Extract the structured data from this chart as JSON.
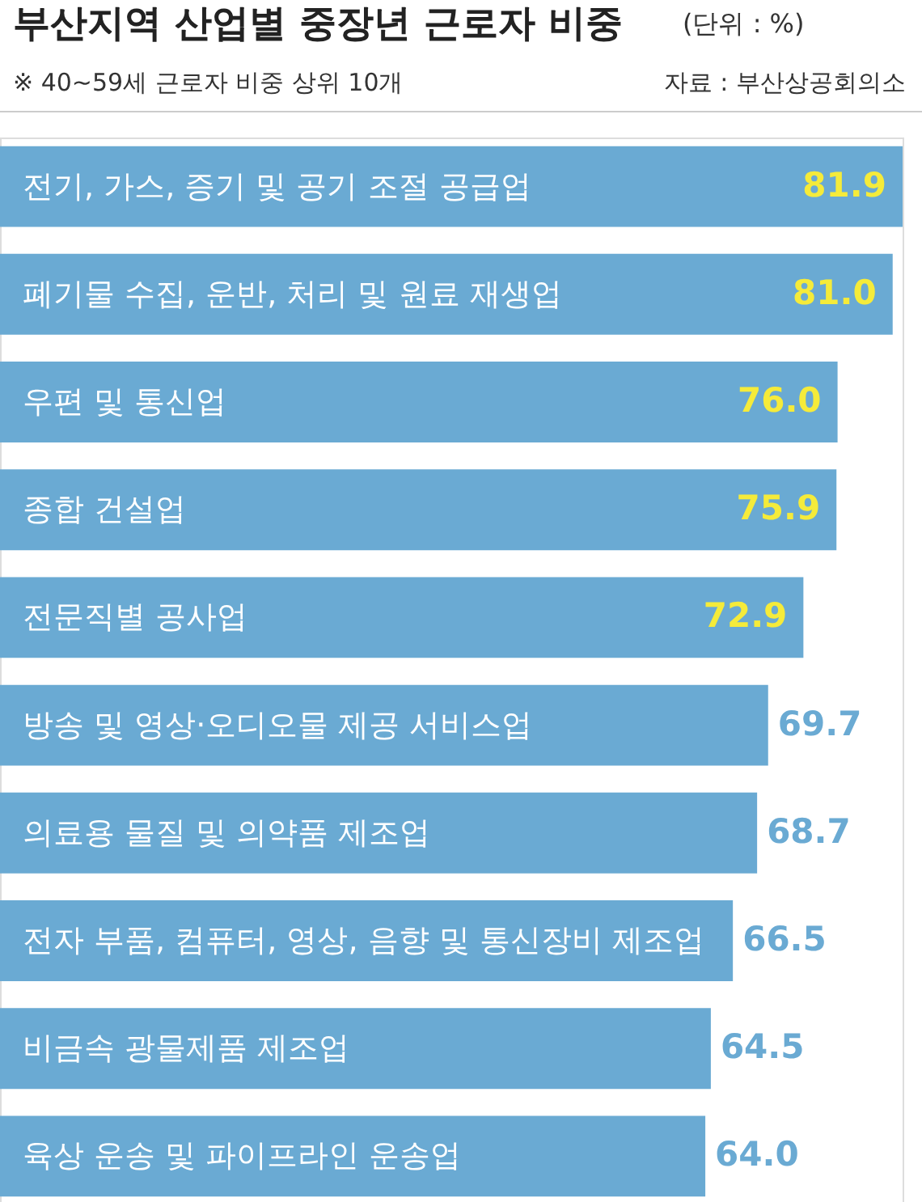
{
  "chart_data": {
    "type": "bar",
    "orientation": "horizontal",
    "title": "부산지역 산업별 중장년 근로자 비중",
    "annotations": [
      "(단위 : %)",
      "※ 40~59세 근로자 비중 상위 10개",
      "자료 : 부산상공회의소"
    ],
    "categories": [
      "전기, 가스, 증기 및 공기 조절 공급업",
      "폐기물 수집, 운반, 처리 및 원료 재생업",
      "우편 및 통신업",
      "종합 건설업",
      "전문직별 공사업",
      "방송 및 영상·오디오물 제공 서비스업",
      "의료용 물질 및 의약품 제조업",
      "전자 부품, 컴퓨터, 영상, 음향 및 통신장비 제조업",
      "비금속 광물제품 제조업",
      "육상 운송 및 파이프라인 운송업"
    ],
    "values": [
      81.9,
      81.0,
      76.0,
      75.9,
      72.9,
      69.7,
      68.7,
      66.5,
      64.5,
      64.0
    ],
    "value_labels": [
      "81.9",
      "81.0",
      "76.0",
      "75.9",
      "72.9",
      "69.7",
      "68.7",
      "66.5",
      "64.5",
      "64.0"
    ],
    "color": "#6aaad3",
    "grid": false
  }
}
